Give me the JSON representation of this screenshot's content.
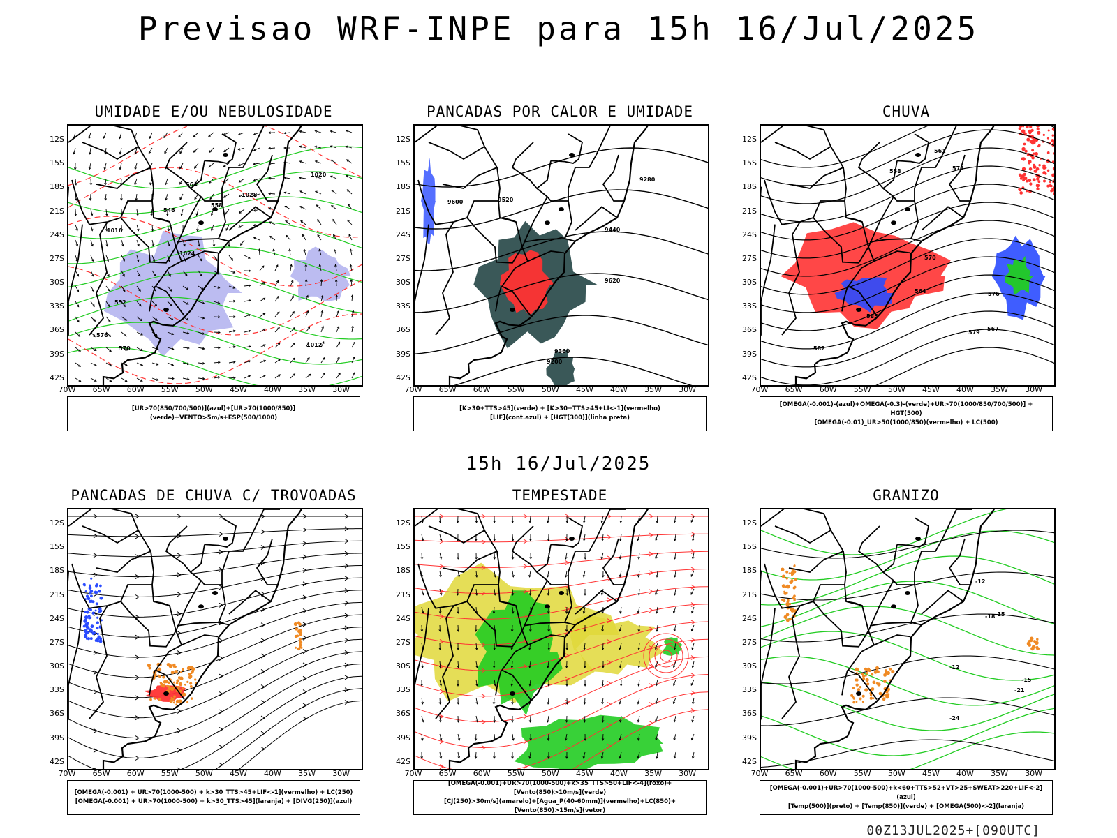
{
  "title": "Previsao WRF-INPE  para 15h 16/Jul/2025",
  "mid_title": "15h 16/Jul/2025",
  "footer": "00Z13JUL2025+[090UTC]",
  "lat_ticks": [
    "12S",
    "15S",
    "18S",
    "21S",
    "24S",
    "27S",
    "30S",
    "33S",
    "36S",
    "39S",
    "42S"
  ],
  "lon_ticks": [
    "70W",
    "65W",
    "60W",
    "55W",
    "50W",
    "45W",
    "40W",
    "35W",
    "30W"
  ],
  "colors": {
    "blue": "#2a4bff",
    "green": "#22cc22",
    "red": "#ff3333",
    "orange": "#f08a24",
    "yellow": "#e0d83a",
    "darkgreen": "#2f4f4f",
    "lavender": "#b0b0ee"
  },
  "panels": [
    {
      "title": "UMIDADE E/OU NEBULOSIDADE",
      "legend": [
        "[UR>70(850/700/500)](azul)+[UR>70(1000/850)](verde)+VENTO>5m/s+ESP(500/1000)"
      ],
      "labels": [
        "1012",
        "1016",
        "1020",
        "1024",
        "1028",
        "570",
        "564",
        "558",
        "552",
        "546",
        "576"
      ]
    },
    {
      "title": "PANCADAS POR CALOR E UMIDADE",
      "legend": [
        "[K>30+TTS>45](verde) + [K>30+TTS>45+LI<-1](vermelho)",
        "[LIF](cont.azul) + [HGT(300)](linha preta)"
      ],
      "labels": [
        "9600",
        "9520",
        "9440",
        "9360",
        "9280",
        "9200",
        "9620"
      ]
    },
    {
      "title": "CHUVA",
      "legend": [
        "[OMEGA(-0.001)-(azul)+OMEGA(-0.3)-(verde)+UR>70(1000/850/700/500)] + HGT(500)",
        "[OMEGA(-0.01)_UR>50(1000/850)(vermelho) + LC(500)"
      ],
      "labels": [
        "582",
        "576",
        "570",
        "564",
        "558",
        "561",
        "567",
        "573",
        "579",
        "585"
      ]
    },
    {
      "title": "PANCADAS DE CHUVA C/ TROVOADAS",
      "legend": [
        "[OMEGA(-0.001) + UR>70(1000-500) + k>30_TTS>45+LIF<-1](vermelho) + LC(250)",
        "[OMEGA(-0.001) + UR>70(1000-500) + k>30_TTS>45](laranja) + [DIVG(250)](azul)"
      ],
      "labels": []
    },
    {
      "title": "TEMPESTADE",
      "legend": [
        "[OMEGA(-0.001)+UR>70(1000-500)+k>35_TTS>50+LIF<-4](roxo)+[Vento(850)>10m/s](verde)",
        "[CJ(250)>30m/s](amarelo)+[Agua_P(40-60mm)](vermelho)+LC(850)+[Vento(850)>15m/s](vetor)"
      ],
      "labels": []
    },
    {
      "title": "GRANIZO",
      "legend": [
        "[OMEGA(-0.001)+UR>70(1000-500)+k<60+TTS>52+VT>25+SWEAT>220+LIF<-2](azul)",
        "[Temp(500)](preto) + [Temp(850)](verde) + [OMEGA(500)<-2](laranja)"
      ],
      "labels": [
        "-12",
        "-15",
        "-18",
        "-21",
        "-24",
        "-12",
        "-15"
      ]
    }
  ]
}
